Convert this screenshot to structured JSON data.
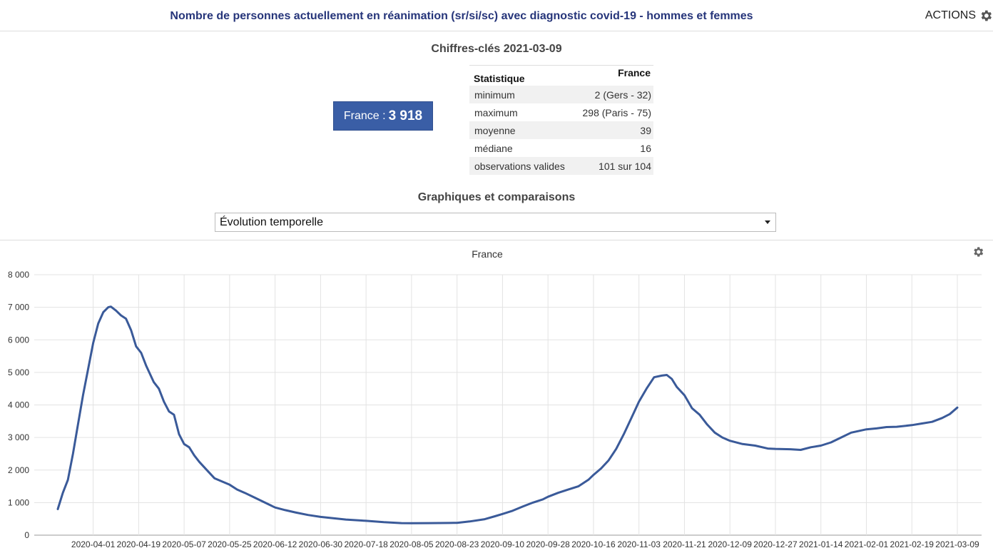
{
  "header": {
    "title": "Nombre de personnes actuellement en réanimation (sr/si/sc) avec diagnostic covid-19 - hommes et femmes",
    "actions_label": "ACTIONS",
    "actions_icon": "gear-icon"
  },
  "key_figures": {
    "title": "Chiffres-clés 2021-03-09",
    "value_label": "France : ",
    "value": "3 918",
    "accent_color": "#3a5ea6",
    "table": {
      "headers": [
        "Statistique",
        "France"
      ],
      "rows": [
        [
          "minimum",
          "2 (Gers - 32)"
        ],
        [
          "maximum",
          "298 (Paris - 75)"
        ],
        [
          "moyenne",
          "39"
        ],
        [
          "médiane",
          "16"
        ],
        [
          "observations valides",
          "101 sur 104"
        ]
      ]
    }
  },
  "graphs": {
    "title": "Graphiques et comparaisons",
    "selected": "Évolution temporelle",
    "settings_icon": "gear-icon"
  },
  "chart_data": {
    "type": "line",
    "title": "France",
    "xlabel": "",
    "ylabel": "",
    "ylim": [
      0,
      8000
    ],
    "yticks": [
      "0",
      "1 000",
      "2 000",
      "3 000",
      "4 000",
      "5 000",
      "6 000",
      "7 000",
      "8 000"
    ],
    "xticks": [
      "2020-04-01",
      "2020-04-19",
      "2020-05-07",
      "2020-05-25",
      "2020-06-12",
      "2020-06-30",
      "2020-07-18",
      "2020-08-05",
      "2020-08-23",
      "2020-09-10",
      "2020-09-28",
      "2020-10-16",
      "2020-11-03",
      "2020-11-21",
      "2020-12-09",
      "2020-12-27",
      "2021-01-14",
      "2021-02-01",
      "2021-02-19",
      "2021-03-09"
    ],
    "xrange": [
      "2020-03-18",
      "2021-03-09"
    ],
    "grid": true,
    "line_color": "#3a5a99",
    "series": [
      {
        "points": [
          [
            "2020-03-18",
            800
          ],
          [
            "2020-03-20",
            1300
          ],
          [
            "2020-03-22",
            1700
          ],
          [
            "2020-03-24",
            2500
          ],
          [
            "2020-03-26",
            3400
          ],
          [
            "2020-03-28",
            4300
          ],
          [
            "2020-03-30",
            5100
          ],
          [
            "2020-04-01",
            5900
          ],
          [
            "2020-04-03",
            6500
          ],
          [
            "2020-04-05",
            6850
          ],
          [
            "2020-04-07",
            7000
          ],
          [
            "2020-04-08",
            7020
          ],
          [
            "2020-04-10",
            6900
          ],
          [
            "2020-04-12",
            6750
          ],
          [
            "2020-04-14",
            6650
          ],
          [
            "2020-04-16",
            6300
          ],
          [
            "2020-04-18",
            5800
          ],
          [
            "2020-04-20",
            5600
          ],
          [
            "2020-04-22",
            5200
          ],
          [
            "2020-04-25",
            4700
          ],
          [
            "2020-04-27",
            4500
          ],
          [
            "2020-04-29",
            4100
          ],
          [
            "2020-05-01",
            3800
          ],
          [
            "2020-05-03",
            3700
          ],
          [
            "2020-05-05",
            3100
          ],
          [
            "2020-05-07",
            2800
          ],
          [
            "2020-05-09",
            2700
          ],
          [
            "2020-05-11",
            2450
          ],
          [
            "2020-05-13",
            2250
          ],
          [
            "2020-05-16",
            2000
          ],
          [
            "2020-05-19",
            1750
          ],
          [
            "2020-05-22",
            1650
          ],
          [
            "2020-05-25",
            1550
          ],
          [
            "2020-05-28",
            1400
          ],
          [
            "2020-05-31",
            1300
          ],
          [
            "2020-06-04",
            1150
          ],
          [
            "2020-06-08",
            1000
          ],
          [
            "2020-06-12",
            850
          ],
          [
            "2020-06-16",
            770
          ],
          [
            "2020-06-20",
            700
          ],
          [
            "2020-06-25",
            620
          ],
          [
            "2020-06-30",
            560
          ],
          [
            "2020-07-05",
            520
          ],
          [
            "2020-07-10",
            480
          ],
          [
            "2020-07-18",
            440
          ],
          [
            "2020-07-25",
            400
          ],
          [
            "2020-08-01",
            370
          ],
          [
            "2020-08-05",
            365
          ],
          [
            "2020-08-12",
            370
          ],
          [
            "2020-08-20",
            375
          ],
          [
            "2020-08-23",
            380
          ],
          [
            "2020-08-28",
            420
          ],
          [
            "2020-09-03",
            490
          ],
          [
            "2020-09-07",
            580
          ],
          [
            "2020-09-10",
            650
          ],
          [
            "2020-09-14",
            750
          ],
          [
            "2020-09-18",
            880
          ],
          [
            "2020-09-22",
            1000
          ],
          [
            "2020-09-26",
            1100
          ],
          [
            "2020-09-28",
            1180
          ],
          [
            "2020-10-02",
            1300
          ],
          [
            "2020-10-06",
            1400
          ],
          [
            "2020-10-10",
            1500
          ],
          [
            "2020-10-14",
            1700
          ],
          [
            "2020-10-16",
            1850
          ],
          [
            "2020-10-19",
            2050
          ],
          [
            "2020-10-22",
            2300
          ],
          [
            "2020-10-25",
            2650
          ],
          [
            "2020-10-28",
            3100
          ],
          [
            "2020-10-31",
            3600
          ],
          [
            "2020-11-03",
            4100
          ],
          [
            "2020-11-06",
            4500
          ],
          [
            "2020-11-09",
            4850
          ],
          [
            "2020-11-12",
            4900
          ],
          [
            "2020-11-14",
            4920
          ],
          [
            "2020-11-16",
            4800
          ],
          [
            "2020-11-18",
            4550
          ],
          [
            "2020-11-21",
            4300
          ],
          [
            "2020-11-24",
            3900
          ],
          [
            "2020-11-27",
            3700
          ],
          [
            "2020-11-30",
            3400
          ],
          [
            "2020-12-03",
            3150
          ],
          [
            "2020-12-06",
            3000
          ],
          [
            "2020-12-09",
            2900
          ],
          [
            "2020-12-14",
            2800
          ],
          [
            "2020-12-19",
            2750
          ],
          [
            "2020-12-24",
            2660
          ],
          [
            "2020-12-27",
            2650
          ],
          [
            "2021-01-02",
            2640
          ],
          [
            "2021-01-06",
            2620
          ],
          [
            "2021-01-10",
            2700
          ],
          [
            "2021-01-14",
            2750
          ],
          [
            "2021-01-18",
            2850
          ],
          [
            "2021-01-22",
            3000
          ],
          [
            "2021-01-26",
            3150
          ],
          [
            "2021-02-01",
            3250
          ],
          [
            "2021-02-05",
            3280
          ],
          [
            "2021-02-09",
            3320
          ],
          [
            "2021-02-13",
            3330
          ],
          [
            "2021-02-19",
            3380
          ],
          [
            "2021-02-23",
            3430
          ],
          [
            "2021-02-27",
            3480
          ],
          [
            "2021-03-03",
            3600
          ],
          [
            "2021-03-06",
            3720
          ],
          [
            "2021-03-09",
            3918
          ]
        ]
      }
    ]
  }
}
